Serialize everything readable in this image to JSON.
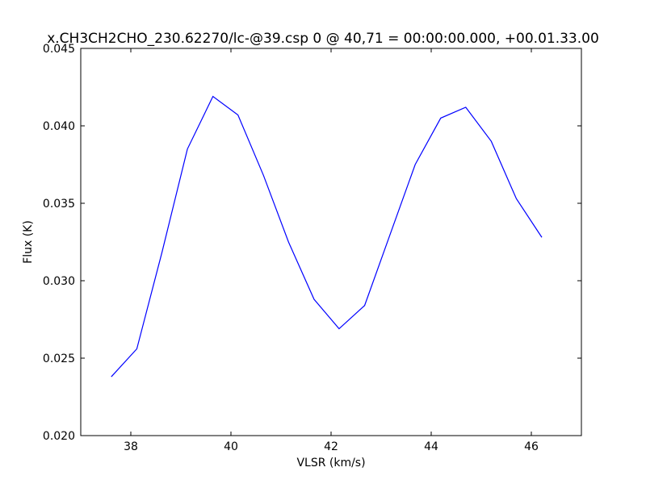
{
  "chart_data": {
    "type": "line",
    "title": "x.CH3CH2CHO_230.62270/lc-@39.csp 0 @ 40,71 = 00:00:00.000, +00.01.33.00",
    "xlabel": "VLSR (km/s)",
    "ylabel": "Flux (K)",
    "xlim": [
      37.0,
      47.0
    ],
    "ylim": [
      0.02,
      0.045
    ],
    "xticks": [
      38,
      40,
      42,
      44,
      46
    ],
    "xtick_labels": [
      "38",
      "40",
      "42",
      "44",
      "46"
    ],
    "yticks": [
      0.02,
      0.025,
      0.03,
      0.035,
      0.04,
      0.045
    ],
    "ytick_labels": [
      "0.020",
      "0.025",
      "0.030",
      "0.035",
      "0.040",
      "0.045"
    ],
    "grid": false,
    "series": [
      {
        "color": "#0000ff",
        "x": [
          37.61,
          38.12,
          38.62,
          39.13,
          39.64,
          40.14,
          40.65,
          41.15,
          41.66,
          42.16,
          42.67,
          43.18,
          43.68,
          44.19,
          44.69,
          45.2,
          45.7,
          46.21
        ],
        "values": [
          0.0238,
          0.0256,
          0.0318,
          0.0385,
          0.0419,
          0.0407,
          0.0368,
          0.0325,
          0.0288,
          0.0269,
          0.0284,
          0.033,
          0.0375,
          0.0405,
          0.0412,
          0.039,
          0.0353,
          0.0328
        ]
      }
    ]
  }
}
